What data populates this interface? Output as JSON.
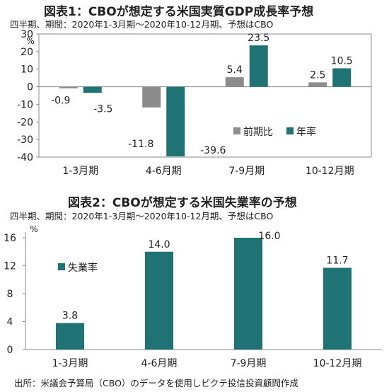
{
  "colors": {
    "prev": "#8c8c8c",
    "annual": "#1f7374",
    "unemp": "#1f7374",
    "axis": "#888888",
    "grid": "#bfbfbf"
  },
  "chart_data": [
    {
      "type": "bar",
      "title": "図表1：CBOが想定する米国実質GDP成長率予想",
      "subtitle": "四半期、期間：2020年1-3月期～2020年10-12月期、予想はCBO",
      "unit": "%",
      "categories": [
        "1-3月期",
        "4-6月期",
        "7-9月期",
        "10-12月期"
      ],
      "series": [
        {
          "name": "前期比",
          "values": [
            -0.9,
            -11.8,
            5.4,
            2.5
          ]
        },
        {
          "name": "年率",
          "values": [
            -3.5,
            -39.6,
            23.5,
            10.5
          ]
        }
      ],
      "value_labels": {
        "前期比": [
          "-0.9",
          "-11.8",
          "5.4",
          "2.5"
        ],
        "年率": [
          "-3.5",
          "-39.6",
          "23.5",
          "10.5"
        ]
      },
      "ylim": [
        -40,
        30
      ],
      "yticks": [
        "30",
        "20",
        "10",
        "0",
        "-10",
        "-20",
        "-30",
        "-40"
      ],
      "ytick_values": [
        30,
        20,
        10,
        0,
        -10,
        -20,
        -30,
        -40
      ],
      "grid": false,
      "legend": "bottom-right"
    },
    {
      "type": "bar",
      "title": "図表2：CBOが想定する米国失業率の予想",
      "subtitle": "四半期、期間：2020年1-3月期～2020年10-12月期、予想はCBO",
      "unit": "%",
      "categories": [
        "1-3月期",
        "4-6月期",
        "7-9月期",
        "10-12月期"
      ],
      "series": [
        {
          "name": "失業率",
          "values": [
            3.8,
            14.0,
            16.0,
            11.7
          ]
        }
      ],
      "value_labels": {
        "失業率": [
          "3.8",
          "14.0",
          "16.0",
          "11.7"
        ]
      },
      "ylim": [
        0,
        16
      ],
      "yticks": [
        "16",
        "12",
        "8",
        "4",
        "0"
      ],
      "ytick_values": [
        16,
        12,
        8,
        4,
        0
      ],
      "grid": false,
      "legend": "top-left"
    }
  ],
  "source": "出所：米議会予算局（CBO）のデータを使用しピクテ投信投資顧問作成"
}
